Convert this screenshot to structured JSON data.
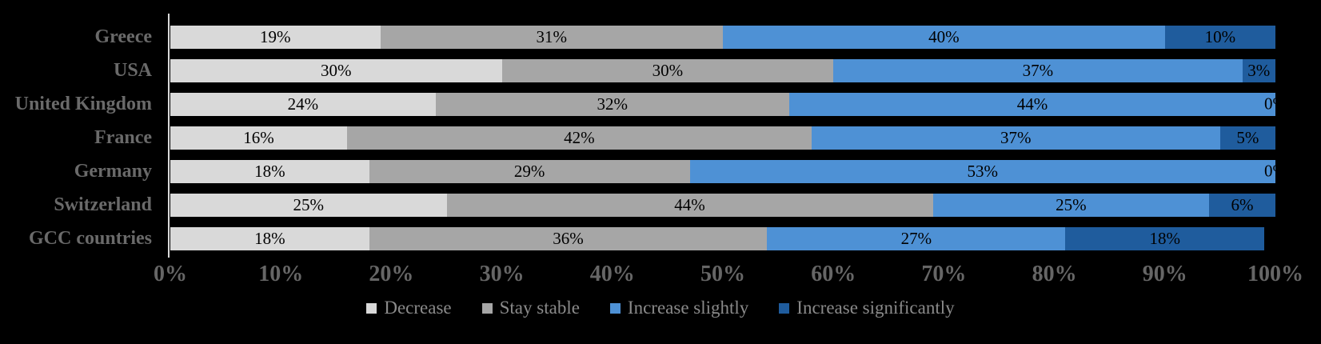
{
  "chart_data": {
    "type": "bar",
    "orientation": "horizontal",
    "stacked": true,
    "title": "",
    "xlabel": "",
    "ylabel": "",
    "categories": [
      "Greece",
      "USA",
      "United Kingdom",
      "France",
      "Germany",
      "Switzerland",
      "GCC countries"
    ],
    "series": [
      {
        "name": "Decrease",
        "color": "#d9d9d9",
        "values": [
          19,
          30,
          24,
          16,
          18,
          25,
          18
        ]
      },
      {
        "name": "Stay stable",
        "color": "#a6a6a6",
        "values": [
          31,
          30,
          32,
          42,
          29,
          44,
          36
        ]
      },
      {
        "name": "Increase slightly",
        "color": "#4e91d5",
        "values": [
          40,
          37,
          44,
          37,
          53,
          25,
          27
        ]
      },
      {
        "name": "Increase significantly",
        "color": "#1f5c9d",
        "values": [
          10,
          3,
          0,
          5,
          0,
          6,
          18
        ]
      }
    ],
    "value_label_suffix": "%",
    "x_axis": {
      "min": 0,
      "max": 100,
      "ticks": [
        "0%",
        "10%",
        "20%",
        "30%",
        "40%",
        "50%",
        "60%",
        "70%",
        "80%",
        "90%",
        "100%"
      ],
      "grid": false
    },
    "legend_position": "bottom",
    "colors": {
      "background": "#000000",
      "axis_line": "#d9d9d9",
      "category_label_text": "#6a6a6a",
      "tick_label_text": "#666666",
      "legend_text": "#8a8a8a",
      "value_label_text": "#000000"
    }
  }
}
